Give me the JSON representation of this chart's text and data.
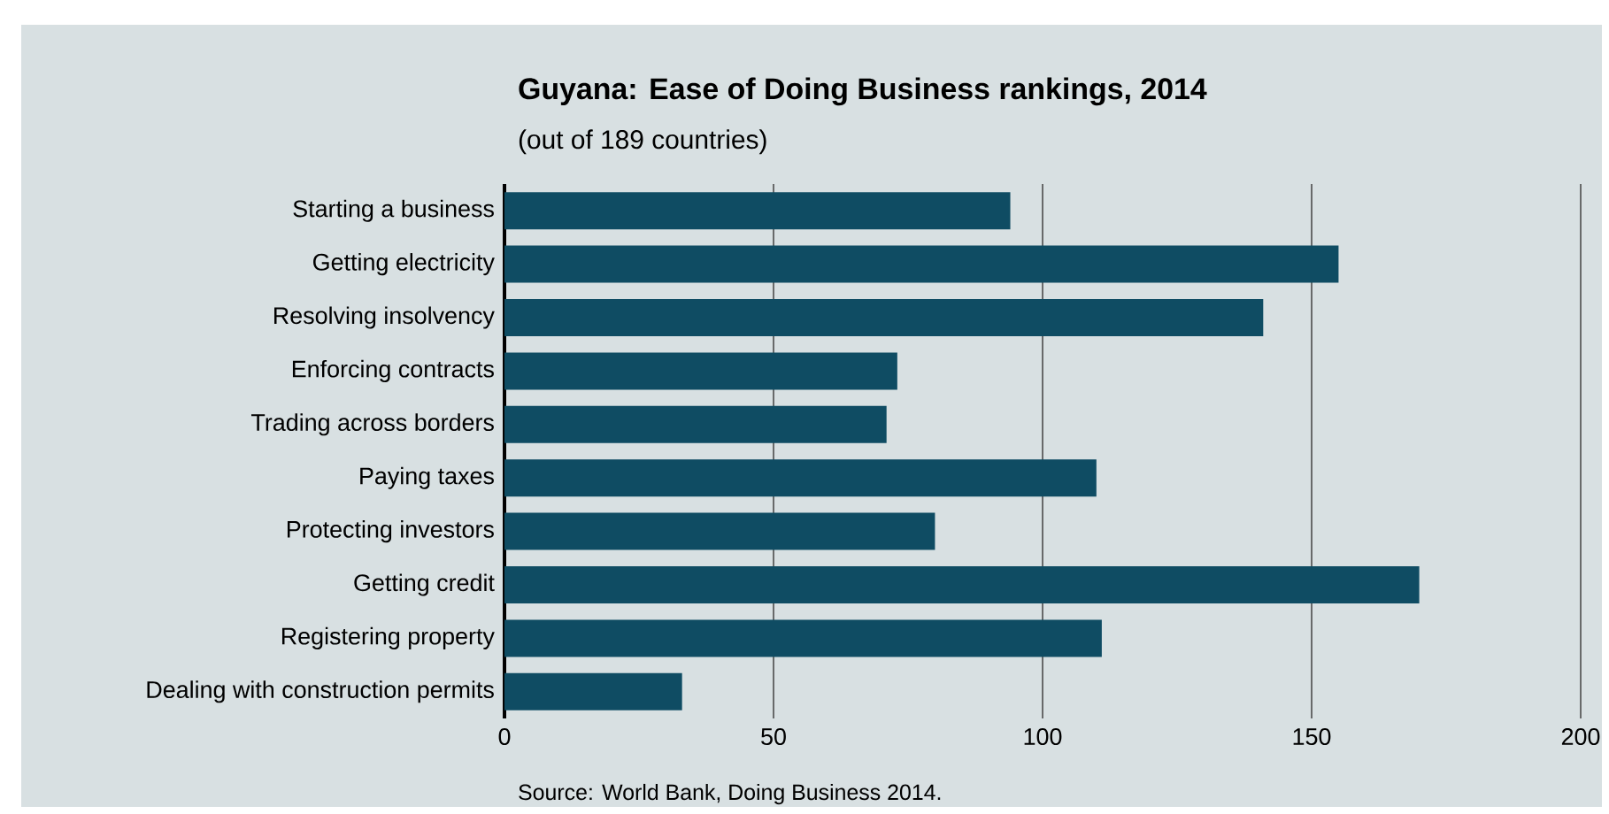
{
  "chart_data": {
    "type": "bar",
    "orientation": "horizontal",
    "title": "Guyana: Ease of Doing Business rankings, 2014",
    "subtitle": "(out of 189 countries)",
    "categories": [
      "Starting a business",
      "Getting electricity",
      "Resolving insolvency",
      "Enforcing contracts",
      "Trading across borders",
      "Paying taxes",
      "Protecting investors",
      "Getting credit",
      "Registering property",
      "Dealing with construction permits"
    ],
    "values": [
      94,
      155,
      141,
      73,
      71,
      110,
      80,
      170,
      111,
      33
    ],
    "color": "#0f4c63",
    "xlim": [
      0,
      200
    ],
    "xticks": [
      0,
      50,
      100,
      150,
      200
    ],
    "grid": "x",
    "annotations": [
      "Source: World Bank, Doing Business 2014."
    ]
  }
}
